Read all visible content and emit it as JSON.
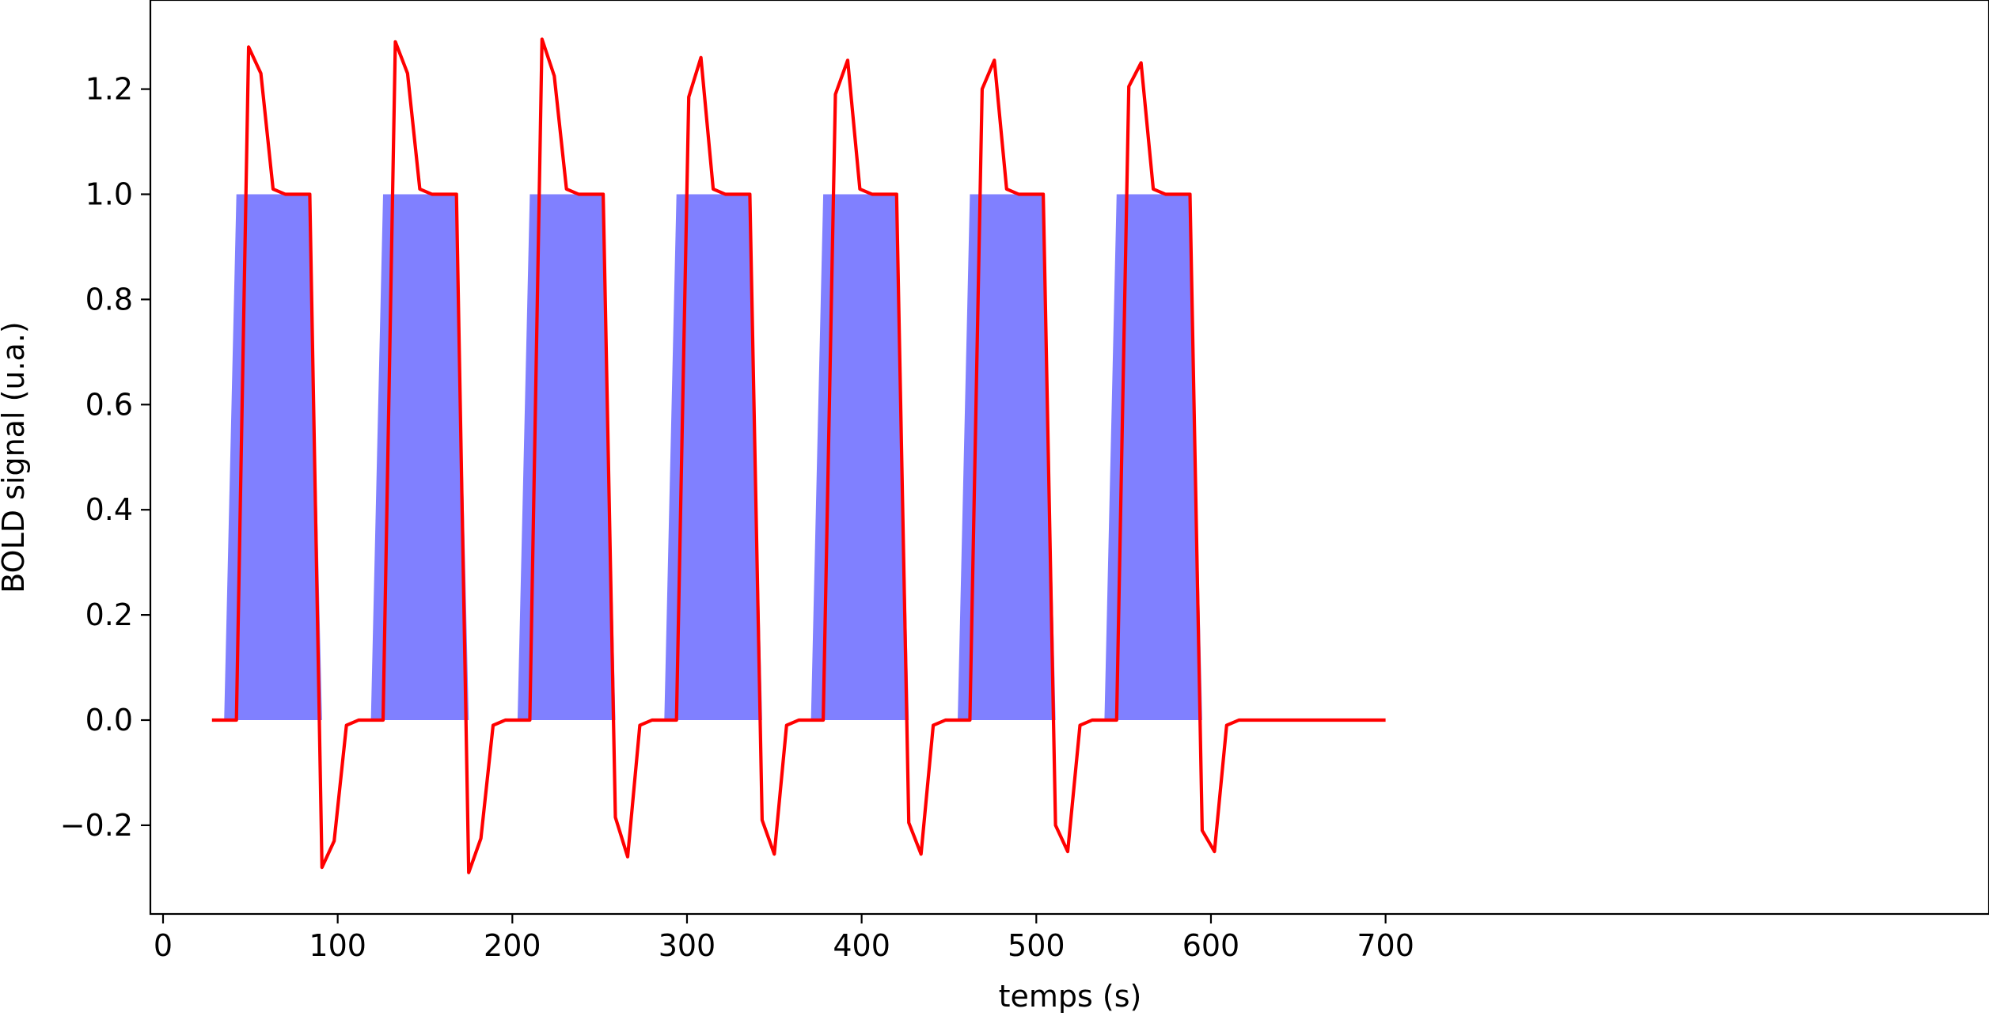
{
  "chart_data": {
    "type": "line",
    "title": "",
    "xlabel": "temps (s)",
    "ylabel": "BOLD signal (u.a.)",
    "xlim": [
      -4,
      731
    ],
    "ylim": [
      -0.37,
      1.37
    ],
    "x_ticks": [
      0,
      100,
      200,
      300,
      400,
      500,
      600,
      700
    ],
    "y_ticks": [
      -0.2,
      0.0,
      0.2,
      0.4,
      0.6,
      0.8,
      1.0,
      1.2
    ],
    "x_tick_labels": [
      "0",
      "100",
      "200",
      "300",
      "400",
      "500",
      "600",
      "700"
    ],
    "y_tick_labels": [
      "−0.2",
      "0.0",
      "0.2",
      "0.4",
      "0.6",
      "0.8",
      "1.0",
      "1.2"
    ],
    "grid": false,
    "legend": "none",
    "series": [
      {
        "kind": "area",
        "color": "#8080ff",
        "x": [
          35,
          42,
          84,
          91,
          119,
          126,
          168,
          175,
          203,
          210,
          252,
          259,
          287,
          294,
          336,
          343,
          371,
          378,
          420,
          427,
          455,
          462,
          504,
          511,
          539,
          546,
          588,
          595
        ],
        "y": [
          0,
          1,
          1,
          0,
          0,
          1,
          1,
          0,
          0,
          1,
          1,
          0,
          0,
          1,
          1,
          0,
          0,
          1,
          1,
          0,
          0,
          1,
          1,
          0,
          0,
          1,
          1,
          0
        ]
      },
      {
        "kind": "line",
        "color": "#ff0000",
        "x": [
          28,
          35,
          42,
          49,
          56,
          63,
          70,
          77,
          84,
          91,
          98,
          105,
          112,
          119,
          126,
          133,
          140,
          147,
          154,
          161,
          168,
          175,
          182,
          189,
          196,
          203,
          210,
          217,
          224,
          231,
          238,
          245,
          252,
          259,
          266,
          273,
          280,
          287,
          294,
          301,
          308,
          315,
          322,
          329,
          336,
          343,
          350,
          357,
          364,
          371,
          378,
          385,
          392,
          399,
          406,
          413,
          420,
          427,
          434,
          441,
          448,
          455,
          462,
          469,
          476,
          483,
          490,
          497,
          504,
          511,
          518,
          525,
          532,
          539,
          546,
          553,
          560,
          567,
          574,
          581,
          588,
          595,
          602,
          609,
          616,
          623,
          700
        ],
        "y": [
          0,
          0,
          0,
          1.28,
          1.23,
          1.01,
          1.0,
          1.0,
          1.0,
          -0.28,
          -0.23,
          -0.01,
          0,
          0,
          0,
          1.29,
          1.23,
          1.01,
          1.0,
          1.0,
          1.0,
          -0.29,
          -0.225,
          -0.01,
          0,
          0,
          0,
          1.295,
          1.225,
          1.01,
          1.0,
          1.0,
          1.0,
          -0.185,
          -0.26,
          -0.01,
          0,
          0,
          0,
          1.185,
          1.26,
          1.01,
          1.0,
          1.0,
          1.0,
          -0.19,
          -0.255,
          -0.01,
          0,
          0,
          0,
          1.19,
          1.255,
          1.01,
          1.0,
          1.0,
          1.0,
          -0.195,
          -0.255,
          -0.01,
          0,
          0,
          0,
          1.2,
          1.255,
          1.01,
          1.0,
          1.0,
          1.0,
          -0.2,
          -0.25,
          -0.01,
          0,
          0,
          0,
          1.205,
          1.25,
          1.01,
          1.0,
          1.0,
          1.0,
          -0.21,
          -0.25,
          -0.01,
          0,
          0,
          0
        ]
      }
    ]
  }
}
